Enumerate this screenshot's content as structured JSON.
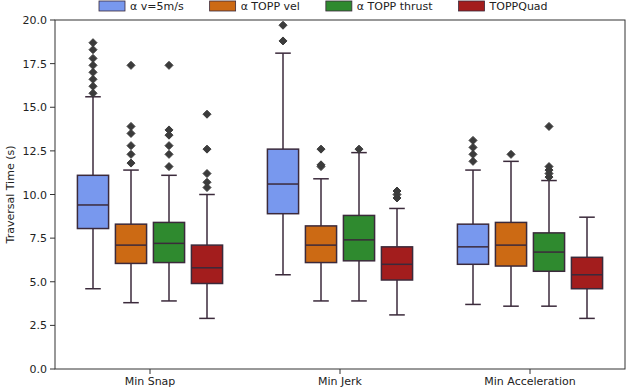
{
  "chart_data": {
    "type": "box",
    "y_label": "Traversal Time (s)",
    "categories": [
      "Min Snap",
      "Min Jerk",
      "Min Acceleration"
    ],
    "ylim": [
      0,
      20
    ],
    "yticks": [
      {
        "value": 0,
        "label": "0.0"
      },
      {
        "value": 2.5,
        "label": "2.5"
      },
      {
        "value": 5,
        "label": "5.0"
      },
      {
        "value": 7.5,
        "label": "7.5"
      },
      {
        "value": 10,
        "label": "10.0"
      },
      {
        "value": 12.5,
        "label": "12.5"
      },
      {
        "value": 15,
        "label": "15.0"
      },
      {
        "value": 17.5,
        "label": "17.5"
      },
      {
        "value": 20,
        "label": "20.0"
      }
    ],
    "legend": "top",
    "series": [
      {
        "name": "α v=5m/s",
        "color": "#7898ee",
        "min": [
          4.6,
          5.4,
          3.7
        ],
        "q1": [
          8.05,
          8.9,
          6.0
        ],
        "median": [
          9.4,
          10.6,
          7.0
        ],
        "q3": [
          11.1,
          12.6,
          8.3
        ],
        "max": [
          15.6,
          18.1,
          11.4
        ],
        "outliers": [
          [
            15.8,
            16.2,
            16.6,
            17.0,
            17.4,
            17.8,
            18.3,
            18.7
          ],
          [
            18.8,
            19.7
          ],
          [
            11.9,
            12.3,
            12.7,
            13.1
          ]
        ]
      },
      {
        "name": "α TOPP vel",
        "color": "#cc6a14",
        "min": [
          3.8,
          3.9,
          3.6
        ],
        "q1": [
          6.05,
          6.1,
          5.9
        ],
        "median": [
          7.1,
          7.1,
          7.1
        ],
        "q3": [
          8.3,
          8.2,
          8.4
        ],
        "max": [
          11.4,
          10.9,
          11.9
        ],
        "outliers": [
          [
            11.8,
            12.3,
            12.8,
            13.5,
            13.9,
            17.4
          ],
          [
            11.6,
            11.7,
            12.6
          ],
          [
            12.3
          ]
        ]
      },
      {
        "name": "α TOPP thrust",
        "color": "#2f8a2f",
        "min": [
          3.9,
          3.9,
          3.6
        ],
        "q1": [
          6.1,
          6.2,
          5.6
        ],
        "median": [
          7.2,
          7.4,
          6.7
        ],
        "q3": [
          8.4,
          8.8,
          7.8
        ],
        "max": [
          11.1,
          12.4,
          10.8
        ],
        "outliers": [
          [
            11.6,
            12.3,
            12.8,
            13.4,
            13.7,
            17.4
          ],
          [
            12.6
          ],
          [
            11.0,
            11.2,
            11.4,
            11.6,
            13.9
          ]
        ]
      },
      {
        "name": "TOPPQuad",
        "color": "#a31d1d",
        "min": [
          2.9,
          3.1,
          2.9
        ],
        "q1": [
          4.9,
          5.1,
          4.6
        ],
        "median": [
          5.8,
          6.0,
          5.4
        ],
        "q3": [
          7.1,
          7.0,
          6.4
        ],
        "max": [
          10.0,
          9.2,
          8.7
        ],
        "outliers": [
          [
            10.4,
            10.7,
            11.2,
            12.6,
            14.6
          ],
          [
            9.8,
            10.0,
            10.2
          ],
          []
        ]
      }
    ]
  }
}
